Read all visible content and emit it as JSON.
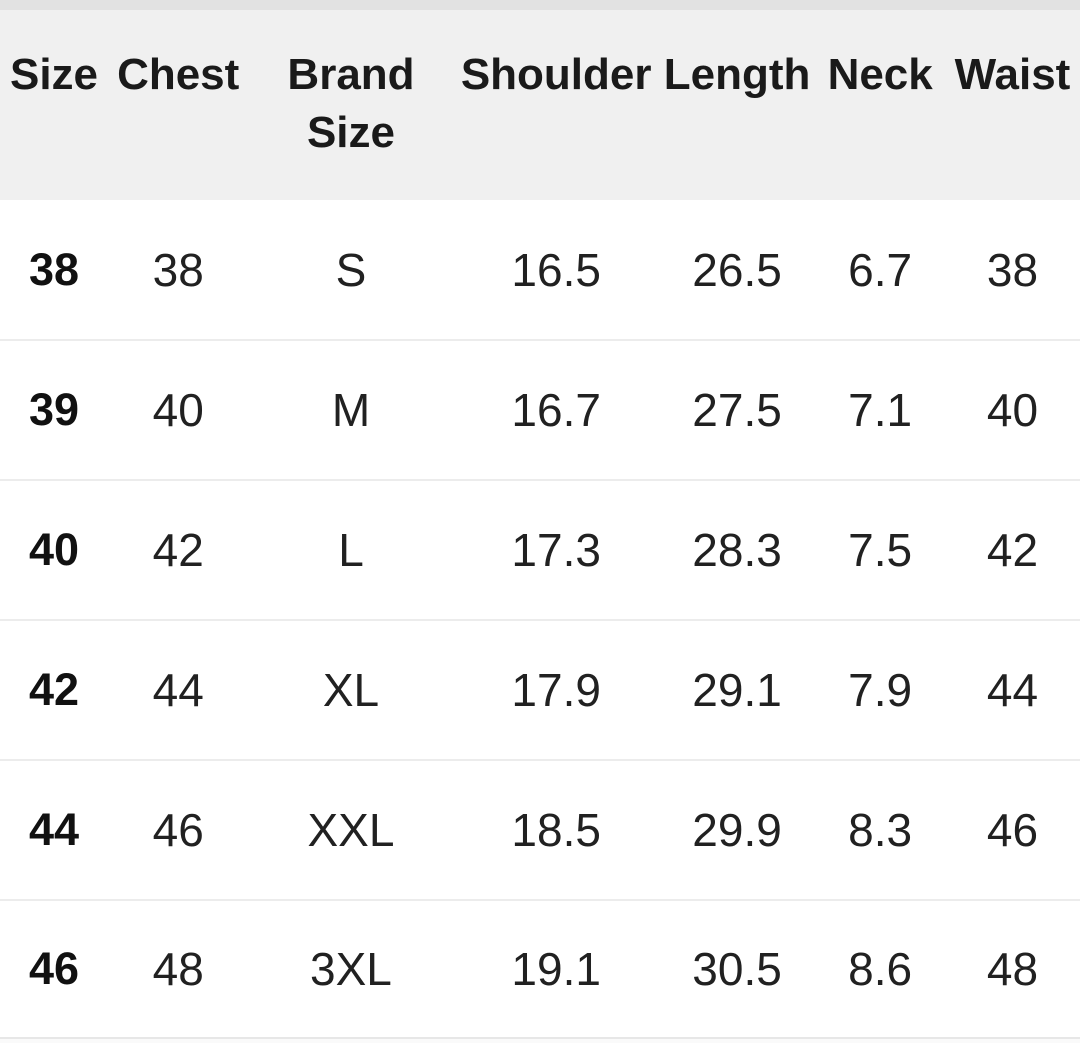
{
  "theme": {
    "top_strip_color": "#e2e2e2",
    "header_bg": "#f0f0f0",
    "row_bg": "#ffffff",
    "divider_color": "#ececec",
    "header_text_color": "#1a1a1a",
    "cell_text_color": "#212121",
    "footer_line_color": "#e7e7e7",
    "footer_strip_color": "#fafafa"
  },
  "size_chart": {
    "columns": [
      "Size",
      "Chest",
      "Brand Size",
      "Shoulder",
      "Length",
      "Neck",
      "Waist"
    ],
    "rows": [
      [
        "38",
        "38",
        "S",
        "16.5",
        "26.5",
        "6.7",
        "38"
      ],
      [
        "39",
        "40",
        "M",
        "16.7",
        "27.5",
        "7.1",
        "40"
      ],
      [
        "40",
        "42",
        "L",
        "17.3",
        "28.3",
        "7.5",
        "42"
      ],
      [
        "42",
        "44",
        "XL",
        "17.9",
        "29.1",
        "7.9",
        "44"
      ],
      [
        "44",
        "46",
        "XXL",
        "18.5",
        "29.9",
        "8.3",
        "46"
      ],
      [
        "46",
        "48",
        "3XL",
        "19.1",
        "30.5",
        "8.6",
        "48"
      ]
    ]
  }
}
